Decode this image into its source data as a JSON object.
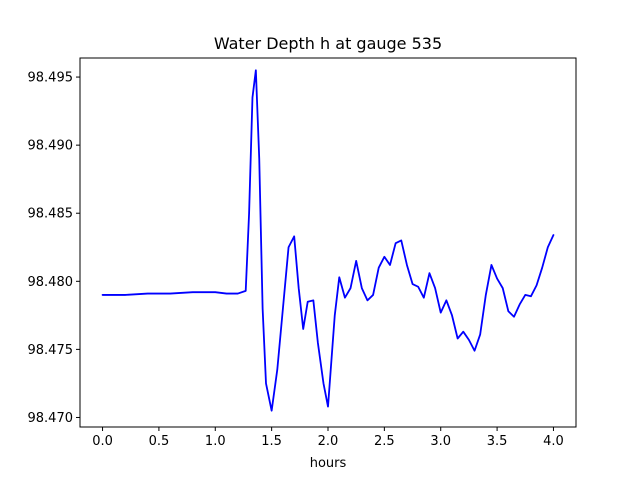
{
  "chart_data": {
    "type": "line",
    "title": "Water Depth h at gauge 535",
    "xlabel": "hours",
    "ylabel": "",
    "xlim": [
      -0.2,
      4.2
    ],
    "ylim": [
      98.4693,
      98.4964
    ],
    "xticks": [
      0.0,
      0.5,
      1.0,
      1.5,
      2.0,
      2.5,
      3.0,
      3.5,
      4.0
    ],
    "xtick_labels": [
      "0.0",
      "0.5",
      "1.0",
      "1.5",
      "2.0",
      "2.5",
      "3.0",
      "3.5",
      "4.0"
    ],
    "yticks": [
      98.47,
      98.475,
      98.48,
      98.485,
      98.49,
      98.495
    ],
    "ytick_labels": [
      "98.470",
      "98.475",
      "98.480",
      "98.485",
      "98.490",
      "98.495"
    ],
    "grid": false,
    "series": [
      {
        "color": "#0000ff",
        "x": [
          0.0,
          0.2,
          0.4,
          0.6,
          0.8,
          1.0,
          1.1,
          1.2,
          1.27,
          1.3,
          1.33,
          1.36,
          1.39,
          1.42,
          1.45,
          1.5,
          1.55,
          1.6,
          1.65,
          1.7,
          1.74,
          1.78,
          1.82,
          1.87,
          1.91,
          1.96,
          2.0,
          2.06,
          2.1,
          2.15,
          2.2,
          2.25,
          2.3,
          2.35,
          2.4,
          2.45,
          2.5,
          2.55,
          2.6,
          2.65,
          2.7,
          2.75,
          2.8,
          2.85,
          2.9,
          2.95,
          3.0,
          3.05,
          3.1,
          3.15,
          3.2,
          3.25,
          3.3,
          3.35,
          3.4,
          3.45,
          3.5,
          3.55,
          3.6,
          3.65,
          3.7,
          3.75,
          3.8,
          3.85,
          3.9,
          3.95,
          4.0
        ],
        "y": [
          98.479,
          98.479,
          98.4791,
          98.4791,
          98.4792,
          98.4792,
          98.4791,
          98.4791,
          98.4793,
          98.485,
          98.4935,
          98.4955,
          98.489,
          98.478,
          98.4725,
          98.4705,
          98.4735,
          98.478,
          98.4825,
          98.4833,
          98.4795,
          98.4765,
          98.4785,
          98.4786,
          98.4755,
          98.4725,
          98.4708,
          98.4775,
          98.4803,
          98.4788,
          98.4795,
          98.4815,
          98.4795,
          98.4786,
          98.479,
          98.481,
          98.4818,
          98.4812,
          98.4828,
          98.483,
          98.4812,
          98.4798,
          98.4796,
          98.4788,
          98.4806,
          98.4795,
          98.4777,
          98.4786,
          98.4775,
          98.4758,
          98.4763,
          98.4757,
          98.4749,
          98.4761,
          98.479,
          98.4812,
          98.4802,
          98.4795,
          98.4778,
          98.4774,
          98.4783,
          98.479,
          98.4789,
          98.4797,
          98.481,
          98.4825,
          98.4834
        ]
      }
    ]
  }
}
